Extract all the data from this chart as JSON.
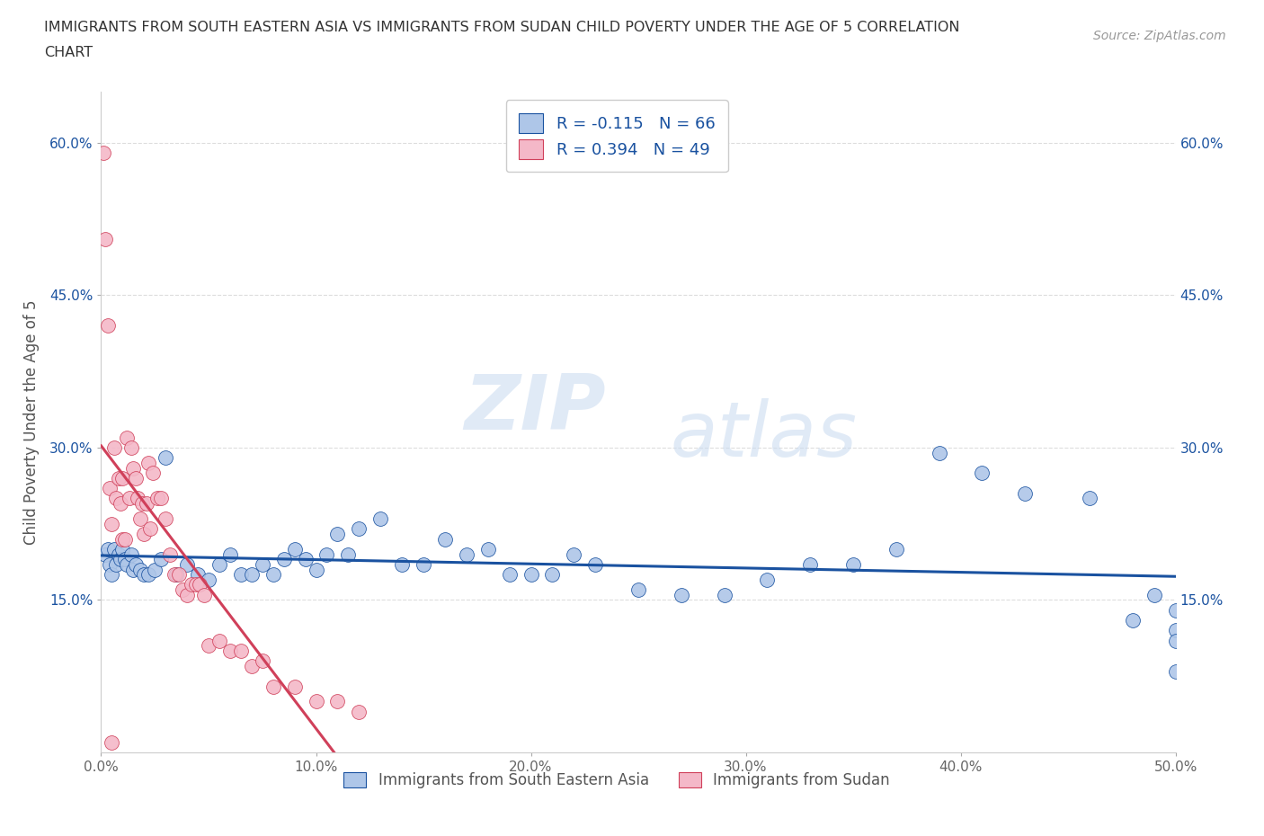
{
  "title_line1": "IMMIGRANTS FROM SOUTH EASTERN ASIA VS IMMIGRANTS FROM SUDAN CHILD POVERTY UNDER THE AGE OF 5 CORRELATION",
  "title_line2": "CHART",
  "source_text": "Source: ZipAtlas.com",
  "ylabel": "Child Poverty Under the Age of 5",
  "xlim": [
    0.0,
    0.5
  ],
  "ylim": [
    0.0,
    0.65
  ],
  "xticks": [
    0.0,
    0.1,
    0.2,
    0.3,
    0.4,
    0.5
  ],
  "xticklabels": [
    "0.0%",
    "10.0%",
    "20.0%",
    "30.0%",
    "40.0%",
    "50.0%"
  ],
  "yticks": [
    0.15,
    0.3,
    0.45,
    0.6
  ],
  "yticklabels": [
    "15.0%",
    "30.0%",
    "45.0%",
    "60.0%"
  ],
  "grid_color": "#dddddd",
  "background_color": "#ffffff",
  "watermark_zip": "ZIP",
  "watermark_atlas": "atlas",
  "legend_r1": "R = -0.115",
  "legend_n1": "N = 66",
  "legend_r2": "R = 0.394",
  "legend_n2": "N = 49",
  "color_sea": "#aec6e8",
  "color_sudan": "#f4b8c8",
  "line_color_sea": "#1a52a0",
  "line_color_sudan": "#d0405a",
  "label_sea": "Immigrants from South Eastern Asia",
  "label_sudan": "Immigrants from Sudan",
  "sea_x": [
    0.002,
    0.003,
    0.004,
    0.005,
    0.006,
    0.007,
    0.008,
    0.009,
    0.01,
    0.011,
    0.012,
    0.014,
    0.015,
    0.016,
    0.018,
    0.02,
    0.022,
    0.025,
    0.028,
    0.03,
    0.035,
    0.04,
    0.045,
    0.05,
    0.055,
    0.06,
    0.065,
    0.07,
    0.075,
    0.08,
    0.085,
    0.09,
    0.095,
    0.1,
    0.105,
    0.11,
    0.115,
    0.12,
    0.13,
    0.14,
    0.15,
    0.16,
    0.17,
    0.18,
    0.19,
    0.2,
    0.21,
    0.22,
    0.23,
    0.25,
    0.27,
    0.29,
    0.31,
    0.33,
    0.35,
    0.37,
    0.39,
    0.41,
    0.43,
    0.46,
    0.48,
    0.49,
    0.5,
    0.5,
    0.5,
    0.5
  ],
  "sea_y": [
    0.195,
    0.2,
    0.185,
    0.175,
    0.2,
    0.185,
    0.195,
    0.19,
    0.2,
    0.19,
    0.185,
    0.195,
    0.18,
    0.185,
    0.18,
    0.175,
    0.175,
    0.18,
    0.19,
    0.29,
    0.175,
    0.185,
    0.175,
    0.17,
    0.185,
    0.195,
    0.175,
    0.175,
    0.185,
    0.175,
    0.19,
    0.2,
    0.19,
    0.18,
    0.195,
    0.215,
    0.195,
    0.22,
    0.23,
    0.185,
    0.185,
    0.21,
    0.195,
    0.2,
    0.175,
    0.175,
    0.175,
    0.195,
    0.185,
    0.16,
    0.155,
    0.155,
    0.17,
    0.185,
    0.185,
    0.2,
    0.295,
    0.275,
    0.255,
    0.25,
    0.13,
    0.155,
    0.12,
    0.14,
    0.11,
    0.08
  ],
  "sudan_x": [
    0.001,
    0.002,
    0.003,
    0.004,
    0.005,
    0.006,
    0.007,
    0.008,
    0.009,
    0.01,
    0.01,
    0.011,
    0.012,
    0.013,
    0.014,
    0.015,
    0.016,
    0.017,
    0.018,
    0.019,
    0.02,
    0.021,
    0.022,
    0.023,
    0.024,
    0.026,
    0.028,
    0.03,
    0.032,
    0.034,
    0.036,
    0.038,
    0.04,
    0.042,
    0.044,
    0.046,
    0.048,
    0.05,
    0.055,
    0.06,
    0.065,
    0.07,
    0.075,
    0.08,
    0.09,
    0.1,
    0.11,
    0.12,
    0.005
  ],
  "sudan_y": [
    0.59,
    0.505,
    0.42,
    0.26,
    0.225,
    0.3,
    0.25,
    0.27,
    0.245,
    0.27,
    0.21,
    0.21,
    0.31,
    0.25,
    0.3,
    0.28,
    0.27,
    0.25,
    0.23,
    0.245,
    0.215,
    0.245,
    0.285,
    0.22,
    0.275,
    0.25,
    0.25,
    0.23,
    0.195,
    0.175,
    0.175,
    0.16,
    0.155,
    0.165,
    0.165,
    0.165,
    0.155,
    0.105,
    0.11,
    0.1,
    0.1,
    0.085,
    0.09,
    0.065,
    0.065,
    0.05,
    0.05,
    0.04,
    0.01
  ]
}
